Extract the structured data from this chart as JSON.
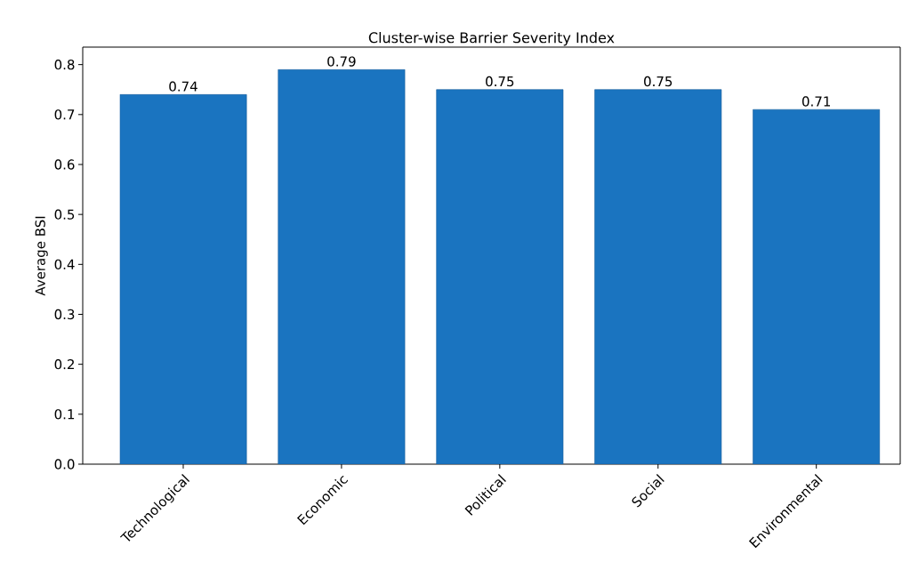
{
  "chart_data": {
    "type": "bar",
    "title": "Cluster-wise Barrier Severity Index",
    "ylabel": "Average BSI",
    "categories": [
      "Technological",
      "Economic",
      "Political",
      "Social",
      "Environmental"
    ],
    "values": [
      0.74,
      0.79,
      0.75,
      0.75,
      0.71
    ],
    "color": "#1a74c0",
    "data_labels": true,
    "ylim": [
      0,
      0.835
    ],
    "yticks": [
      {
        "value": 0,
        "label": "0.0"
      },
      0.1,
      0.2,
      0.3,
      0.4,
      0.5,
      0.6,
      0.7,
      0.8
    ],
    "grid": false
  }
}
